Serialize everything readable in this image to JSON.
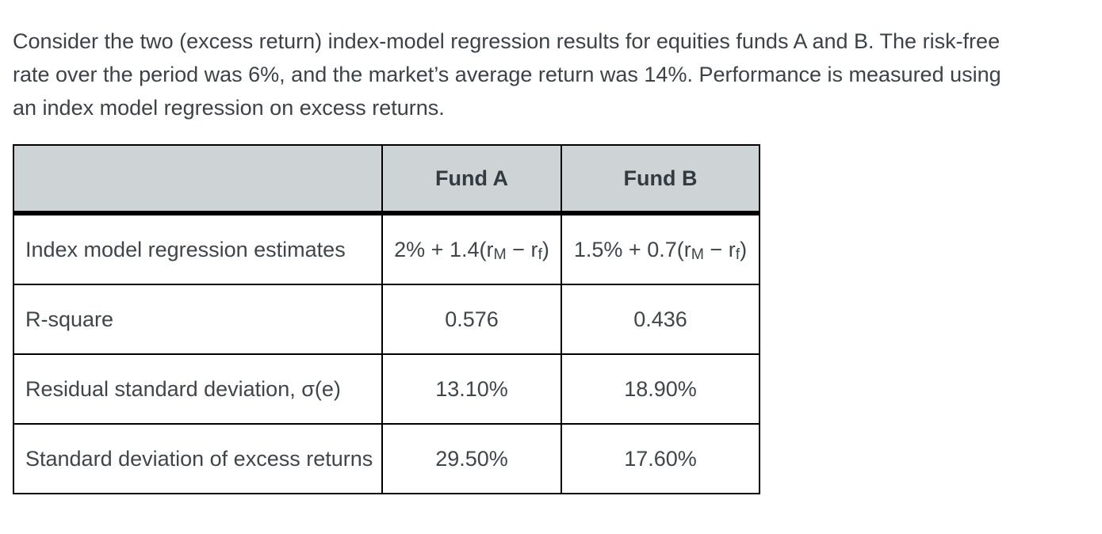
{
  "intro": {
    "lines": [
      "Consider the two (excess return) index-model regression results for equities funds A and B. The risk-free",
      "rate over the period was 6%, and the market’s average return was 14%. Performance is measured using",
      "an index model regression on excess returns."
    ]
  },
  "table": {
    "colors": {
      "header_bg": "#ced3d6",
      "border": "#000000",
      "body_text": "#414549",
      "header_text": "#343a41"
    },
    "header": {
      "metric_label": "",
      "fund_a": "Fund A",
      "fund_b": "Fund B"
    },
    "row_labels": {
      "regression": "Index model regression estimates",
      "r_square": "R-square",
      "residual_sd": "Residual standard deviation, σ(e)",
      "sd_excess": "Standard deviation of excess returns"
    },
    "regression_estimates": {
      "fund_a": {
        "pre": "2% + 1.4(r",
        "sub1": "M",
        "mid": " − r",
        "sub2": "f",
        "post": ")"
      },
      "fund_b": {
        "pre": "1.5% + 0.7(r",
        "sub1": "M",
        "mid": " − r",
        "sub2": "f",
        "post": ")"
      }
    },
    "r_square": {
      "fund_a": "0.576",
      "fund_b": "0.436"
    },
    "residual_sd": {
      "fund_a": "13.10%",
      "fund_b": "18.90%"
    },
    "sd_excess": {
      "fund_a": "29.50%",
      "fund_b": "17.60%"
    }
  }
}
